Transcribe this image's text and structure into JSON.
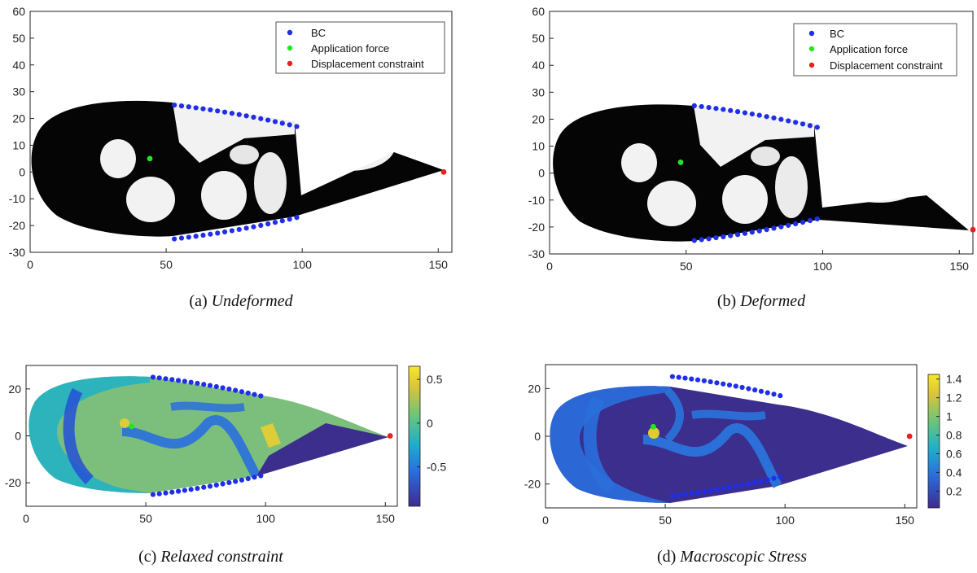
{
  "legend": {
    "bc": "BC",
    "force": "Application force",
    "constraint": "Displacement constraint"
  },
  "colors": {
    "bc": "#1f2ee8",
    "force": "#22e622",
    "constraint": "#e82020",
    "cmap_low": "#3b2e8c",
    "cmap_mid": "#7cbf7c",
    "cmap_high": "#f6e626"
  },
  "chart_data": [
    {
      "id": "a",
      "type": "scatter",
      "caption_label": "(a) ",
      "caption_italic": "Undeformed",
      "xlim": [
        0,
        155
      ],
      "ylim": [
        -30,
        60
      ],
      "xticks": [
        0,
        50,
        100,
        150
      ],
      "yticks": [
        -30,
        -20,
        -10,
        0,
        10,
        20,
        30,
        40,
        50,
        60
      ],
      "force_point": [
        44,
        5
      ],
      "constraint_point": [
        152,
        0
      ],
      "bc_upper": {
        "x_start": 53,
        "x_end": 98,
        "y_start": 25,
        "y_end": 17
      },
      "bc_lower": {
        "x_start": 53,
        "x_end": 98,
        "y_start": -25,
        "y_end": -17
      }
    },
    {
      "id": "b",
      "type": "scatter",
      "caption_label": "(b) ",
      "caption_italic": "Deformed",
      "xlim": [
        0,
        155
      ],
      "ylim": [
        -30,
        60
      ],
      "xticks": [
        0,
        50,
        100,
        150
      ],
      "yticks": [
        -30,
        -20,
        -10,
        0,
        10,
        20,
        30,
        40,
        50,
        60
      ],
      "force_point": [
        48,
        4
      ],
      "constraint_point": [
        155,
        -21
      ],
      "bc_upper": {
        "x_start": 53,
        "x_end": 98,
        "y_start": 25,
        "y_end": 17
      },
      "bc_lower": {
        "x_start": 53,
        "x_end": 98,
        "y_start": -25,
        "y_end": -17
      }
    },
    {
      "id": "c",
      "type": "heatmap",
      "caption_label": "(c) ",
      "caption_italic": "Relaxed constraint",
      "xlim": [
        0,
        155
      ],
      "ylim": [
        -30,
        30
      ],
      "xticks": [
        0,
        50,
        100,
        150
      ],
      "yticks": [
        -20,
        0,
        20
      ],
      "colorbar_ticks": [
        "0.5",
        "0",
        "-0.5"
      ],
      "colorbar_values": [
        0.5,
        0,
        -0.5
      ],
      "colorbar_range": [
        -0.95,
        0.65
      ],
      "force_point": [
        44,
        4
      ],
      "constraint_point": [
        152,
        0
      ],
      "bc_upper": {
        "x_start": 53,
        "x_end": 98,
        "y_start": 25,
        "y_end": 17
      },
      "bc_lower": {
        "x_start": 53,
        "x_end": 98,
        "y_start": -25,
        "y_end": -17
      }
    },
    {
      "id": "d",
      "type": "heatmap",
      "caption_label": "(d) ",
      "caption_italic": "Macroscopic Stress",
      "xlim": [
        0,
        155
      ],
      "ylim": [
        -30,
        30
      ],
      "xticks": [
        0,
        50,
        100,
        150
      ],
      "yticks": [
        -20,
        0,
        20
      ],
      "colorbar_ticks": [
        "1.4",
        "1.2",
        "1",
        "0.8",
        "0.6",
        "0.4",
        "0.2"
      ],
      "colorbar_values": [
        1.4,
        1.2,
        1.0,
        0.8,
        0.6,
        0.4,
        0.2
      ],
      "colorbar_range": [
        0.02,
        1.45
      ],
      "force_point": [
        45,
        4
      ],
      "constraint_point": [
        152,
        0
      ],
      "bc_upper": {
        "x_start": 53,
        "x_end": 98,
        "y_start": 25,
        "y_end": 17
      },
      "bc_lower": {
        "x_start": 53,
        "x_end": 98,
        "y_start": -25,
        "y_end": -17
      }
    }
  ]
}
